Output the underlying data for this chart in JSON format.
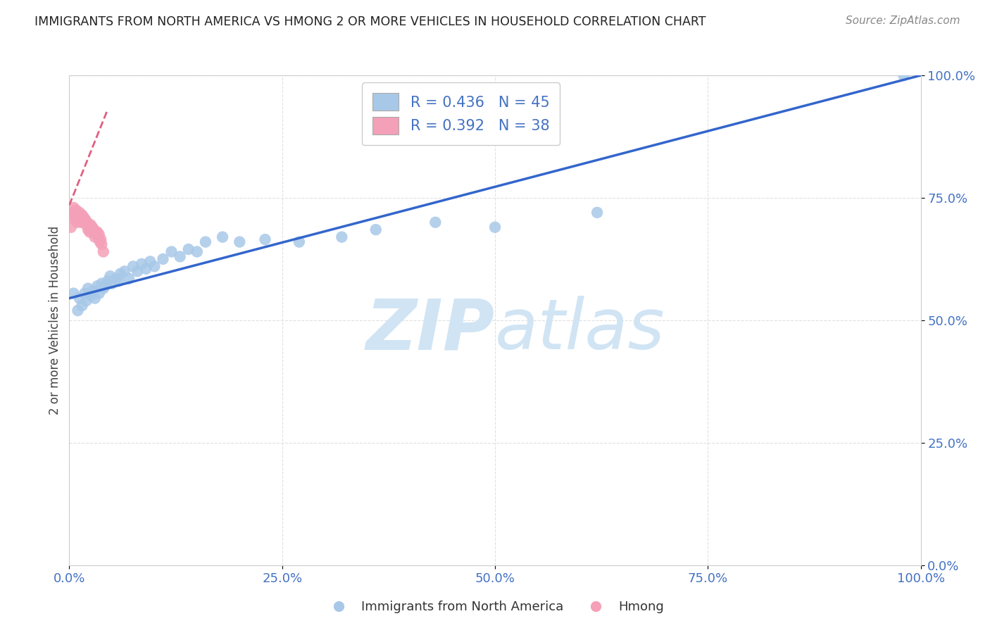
{
  "title": "IMMIGRANTS FROM NORTH AMERICA VS HMONG 2 OR MORE VEHICLES IN HOUSEHOLD CORRELATION CHART",
  "source": "Source: ZipAtlas.com",
  "ylabel": "2 or more Vehicles in Household",
  "xmin": 0.0,
  "xmax": 1.0,
  "ymin": 0.0,
  "ymax": 1.0,
  "x_tick_labels": [
    "0.0%",
    "25.0%",
    "50.0%",
    "75.0%",
    "100.0%"
  ],
  "x_tick_positions": [
    0.0,
    0.25,
    0.5,
    0.75,
    1.0
  ],
  "y_tick_labels": [
    "0.0%",
    "25.0%",
    "50.0%",
    "75.0%",
    "100.0%"
  ],
  "y_tick_positions": [
    0.0,
    0.25,
    0.5,
    0.75,
    1.0
  ],
  "blue_color": "#a8c8e8",
  "pink_color": "#f4a0b8",
  "blue_line_color": "#3366cc",
  "pink_line_color": "#e06080",
  "R_blue": 0.436,
  "N_blue": 45,
  "R_pink": 0.392,
  "N_pink": 38,
  "legend_label_blue": "Immigrants from North America",
  "legend_label_pink": "Hmong",
  "blue_scatter_x": [
    0.005,
    0.01,
    0.012,
    0.015,
    0.018,
    0.02,
    0.022,
    0.025,
    0.028,
    0.03,
    0.033,
    0.035,
    0.038,
    0.04,
    0.042,
    0.045,
    0.048,
    0.05,
    0.055,
    0.058,
    0.06,
    0.065,
    0.07,
    0.075,
    0.08,
    0.085,
    0.09,
    0.095,
    0.1,
    0.11,
    0.12,
    0.13,
    0.14,
    0.15,
    0.16,
    0.18,
    0.2,
    0.23,
    0.27,
    0.32,
    0.36,
    0.43,
    0.5,
    0.62,
    0.98
  ],
  "blue_scatter_y": [
    0.555,
    0.52,
    0.545,
    0.53,
    0.555,
    0.54,
    0.565,
    0.55,
    0.56,
    0.545,
    0.57,
    0.555,
    0.575,
    0.565,
    0.57,
    0.58,
    0.59,
    0.575,
    0.585,
    0.58,
    0.595,
    0.6,
    0.585,
    0.61,
    0.6,
    0.615,
    0.605,
    0.62,
    0.61,
    0.625,
    0.64,
    0.63,
    0.645,
    0.64,
    0.66,
    0.67,
    0.66,
    0.665,
    0.66,
    0.67,
    0.685,
    0.7,
    0.69,
    0.72,
    1.0
  ],
  "pink_scatter_x": [
    0.002,
    0.003,
    0.004,
    0.005,
    0.006,
    0.007,
    0.008,
    0.009,
    0.01,
    0.011,
    0.012,
    0.013,
    0.014,
    0.015,
    0.016,
    0.017,
    0.018,
    0.019,
    0.02,
    0.021,
    0.022,
    0.023,
    0.024,
    0.025,
    0.026,
    0.027,
    0.028,
    0.029,
    0.03,
    0.031,
    0.032,
    0.033,
    0.034,
    0.035,
    0.036,
    0.037,
    0.038,
    0.04
  ],
  "pink_scatter_y": [
    0.69,
    0.71,
    0.72,
    0.73,
    0.72,
    0.71,
    0.725,
    0.7,
    0.715,
    0.705,
    0.72,
    0.71,
    0.7,
    0.715,
    0.705,
    0.71,
    0.7,
    0.705,
    0.695,
    0.7,
    0.685,
    0.695,
    0.68,
    0.695,
    0.685,
    0.69,
    0.68,
    0.685,
    0.67,
    0.68,
    0.675,
    0.68,
    0.67,
    0.675,
    0.66,
    0.665,
    0.655,
    0.64
  ],
  "blue_line_x0": 0.0,
  "blue_line_y0": 0.545,
  "blue_line_x1": 1.0,
  "blue_line_y1": 1.0,
  "pink_line_x0": 0.0,
  "pink_line_y0": 0.735,
  "pink_line_x1": 0.045,
  "pink_line_y1": 0.93,
  "title_color": "#222222",
  "source_color": "#888888",
  "grid_color": "#e0e0e0",
  "tick_label_color": "#4472c4",
  "legend_value_color": "#4472c4",
  "watermark_color": "#d0e4f4"
}
